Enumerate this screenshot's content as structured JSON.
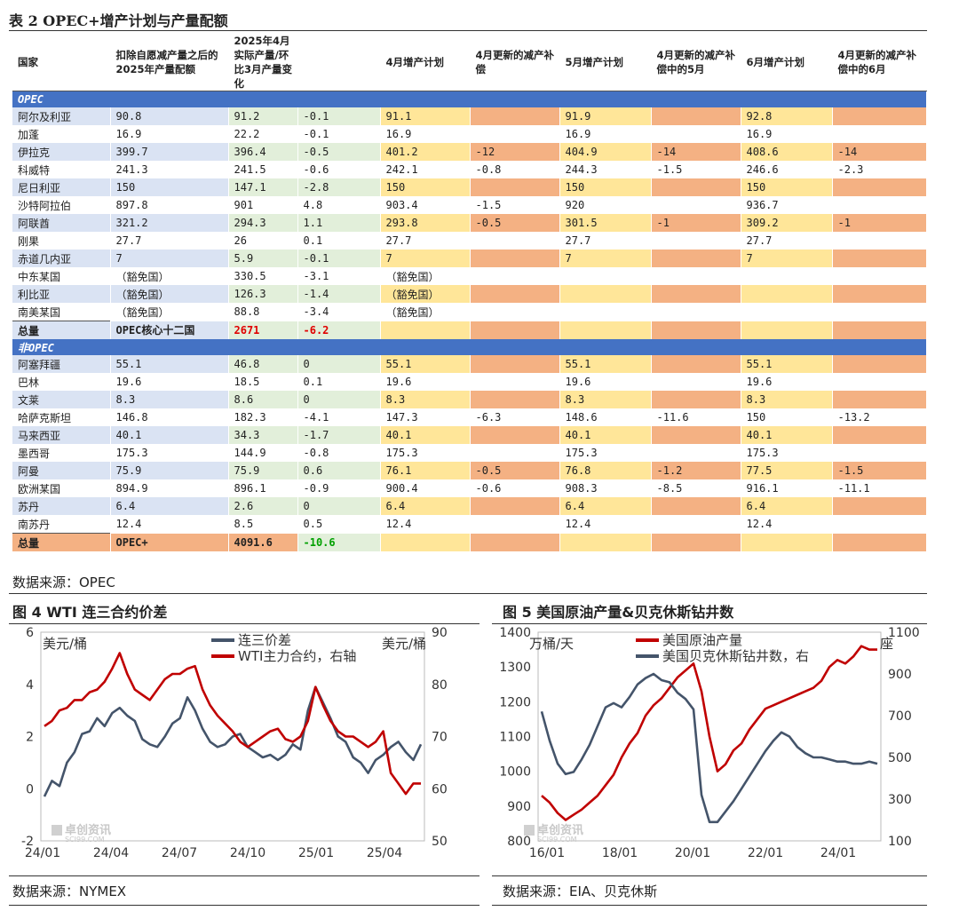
{
  "table": {
    "title": "表 2 OPEC+增产计划与产量配额",
    "headers": [
      "国家",
      "扣除自愿减产量之后的2025年产量配额",
      "2025年4月实际产量/环比3月产量变化",
      "",
      "4月增产计划",
      "4月更新的减产补偿",
      "5月增产计划",
      "4月更新的减产补偿中的5月",
      "6月增产计划",
      "4月更新的减产补偿中的6月"
    ],
    "sections": [
      {
        "label": "OPEC",
        "rows": [
          [
            "阿尔及利亚",
            "90.8",
            "91.2",
            "-0.1",
            "91.1",
            "",
            "91.9",
            "",
            "92.8",
            ""
          ],
          [
            "加蓬",
            "16.9",
            "22.2",
            "-0.1",
            "16.9",
            "",
            "16.9",
            "",
            "16.9",
            ""
          ],
          [
            "伊拉克",
            "399.7",
            "396.4",
            "-0.5",
            "401.2",
            "-12",
            "404.9",
            "-14",
            "408.6",
            "-14"
          ],
          [
            "科威特",
            "241.3",
            "241.5",
            "-0.6",
            "242.1",
            "-0.8",
            "244.3",
            "-1.5",
            "246.6",
            "-2.3"
          ],
          [
            "尼日利亚",
            "150",
            "147.1",
            "-2.8",
            "150",
            "",
            "150",
            "",
            "150",
            ""
          ],
          [
            "沙特阿拉伯",
            "897.8",
            "901",
            "4.8",
            "903.4",
            "-1.5",
            "920",
            "",
            "936.7",
            ""
          ],
          [
            "阿联酋",
            "321.2",
            "294.3",
            "1.1",
            "293.8",
            "-0.5",
            "301.5",
            "-1",
            "309.2",
            "-1"
          ],
          [
            "刚果",
            "27.7",
            "26",
            "0.1",
            "27.7",
            "",
            "27.7",
            "",
            "27.7",
            ""
          ],
          [
            "赤道几内亚",
            "7",
            "5.9",
            "-0.1",
            "7",
            "",
            "7",
            "",
            "7",
            ""
          ],
          [
            "中东某国",
            "（豁免国）",
            "330.5",
            "-3.1",
            "（豁免国）",
            "",
            "",
            "",
            "",
            ""
          ],
          [
            "利比亚",
            "（豁免国）",
            "126.3",
            "-1.4",
            "（豁免国）",
            "",
            "",
            "",
            "",
            ""
          ],
          [
            "南美某国",
            "（豁免国）",
            "88.8",
            "-3.4",
            "（豁免国）",
            "",
            "",
            "",
            "",
            ""
          ]
        ],
        "total": [
          "总量",
          "OPEC核心十二国",
          "2671",
          "-6.2",
          "",
          "",
          "",
          "",
          "",
          ""
        ]
      },
      {
        "label": "非OPEC",
        "rows": [
          [
            "阿塞拜疆",
            "55.1",
            "46.8",
            "0",
            "55.1",
            "",
            "55.1",
            "",
            "55.1",
            ""
          ],
          [
            "巴林",
            "19.6",
            "18.5",
            "0.1",
            "19.6",
            "",
            "19.6",
            "",
            "19.6",
            ""
          ],
          [
            "文莱",
            "8.3",
            "8.6",
            "0",
            "8.3",
            "",
            "8.3",
            "",
            "8.3",
            ""
          ],
          [
            "哈萨克斯坦",
            "146.8",
            "182.3",
            "-4.1",
            "147.3",
            "-6.3",
            "148.6",
            "-11.6",
            "150",
            "-13.2"
          ],
          [
            "马来西亚",
            "40.1",
            "34.3",
            "-1.7",
            "40.1",
            "",
            "40.1",
            "",
            "40.1",
            ""
          ],
          [
            "墨西哥",
            "175.3",
            "144.9",
            "-0.8",
            "175.3",
            "",
            "175.3",
            "",
            "175.3",
            ""
          ],
          [
            "阿曼",
            "75.9",
            "75.9",
            "0.6",
            "76.1",
            "-0.5",
            "76.8",
            "-1.2",
            "77.5",
            "-1.5"
          ],
          [
            "欧洲某国",
            "894.9",
            "896.1",
            "-0.9",
            "900.4",
            "-0.6",
            "908.3",
            "-8.5",
            "916.1",
            "-11.1"
          ],
          [
            "苏丹",
            "6.4",
            "2.6",
            "0",
            "6.4",
            "",
            "6.4",
            "",
            "6.4",
            ""
          ],
          [
            "南苏丹",
            "12.4",
            "8.5",
            "0.5",
            "12.4",
            "",
            "12.4",
            "",
            "12.4",
            ""
          ]
        ],
        "total": [
          "总量",
          "OPEC+",
          "4091.6",
          "-10.6",
          "",
          "",
          "",
          "",
          "",
          ""
        ]
      }
    ],
    "source": "数据来源：OPEC",
    "colors": {
      "section": "#4472c4",
      "light_blue": "#dae3f3",
      "light_green": "#e2efda",
      "yellow": "#ffe699",
      "orange": "#f4b183",
      "red_text": "#e00000",
      "green_text": "#00a000"
    }
  },
  "chart4": {
    "title": "图 4 WTI 连三合约价差",
    "source": "数据来源：NYMEX",
    "watermark": "卓创资讯",
    "watermark_sub": "SCI99.COM",
    "chart_data": {
      "type": "line",
      "x_ticks": [
        "24/01",
        "24/04",
        "24/07",
        "24/10",
        "25/01",
        "25/04"
      ],
      "left_axis": {
        "label": "美元/桶",
        "ticks": [
          "6",
          "4",
          "2",
          "0",
          "-2"
        ],
        "range": [
          -2,
          6
        ]
      },
      "right_axis": {
        "label": "美元/桶",
        "ticks": [
          "90",
          "80",
          "70",
          "60",
          "50"
        ],
        "range": [
          50,
          90
        ]
      },
      "series": [
        {
          "name": "连三价差",
          "axis": "left",
          "color": "#44546a",
          "values": [
            -0.3,
            0.3,
            0.1,
            1.0,
            1.4,
            2.1,
            2.2,
            2.7,
            2.4,
            2.9,
            3.1,
            2.8,
            2.6,
            1.9,
            1.7,
            1.6,
            2.0,
            2.5,
            2.7,
            3.5,
            3.0,
            2.3,
            1.8,
            1.6,
            1.7,
            2.0,
            2.1,
            1.6,
            1.4,
            1.2,
            1.3,
            1.1,
            1.3,
            1.7,
            1.5,
            3.0,
            3.9,
            3.3,
            2.7,
            2.0,
            1.8,
            1.2,
            1.0,
            0.6,
            1.1,
            1.3,
            1.6,
            1.8,
            1.4,
            1.1,
            1.7
          ]
        },
        {
          "name": "WTI主力合约，右轴",
          "axis": "right",
          "color": "#c00000",
          "values": [
            72,
            73,
            75,
            75.5,
            77,
            77,
            78.5,
            79,
            80.5,
            83,
            86,
            82,
            79,
            78,
            77,
            79,
            81,
            82,
            82,
            83,
            83.5,
            79,
            76,
            74,
            72.5,
            71,
            69,
            68,
            69,
            70,
            71,
            71.5,
            69.5,
            69,
            70,
            73,
            79.5,
            76,
            73,
            71,
            70,
            70,
            69,
            68,
            69,
            71,
            63,
            61,
            59,
            61,
            61
          ]
        }
      ]
    }
  },
  "chart5": {
    "title": "图 5 美国原油产量&贝克休斯钻井数",
    "source": "数据来源：EIA、贝克休斯",
    "watermark": "卓创资讯",
    "watermark_sub": "SCI99.COM",
    "chart_data": {
      "type": "line",
      "x_ticks": [
        "16/01",
        "18/01",
        "20/01",
        "22/01",
        "24/01"
      ],
      "left_axis": {
        "label": "万桶/天",
        "ticks": [
          "1400",
          "1300",
          "1200",
          "1100",
          "1000",
          "900",
          "800"
        ],
        "range": [
          800,
          1400
        ]
      },
      "right_axis": {
        "label": "座",
        "ticks": [
          "1100",
          "900",
          "700",
          "500",
          "300",
          "100"
        ],
        "range": [
          100,
          1100
        ]
      },
      "series": [
        {
          "name": "美国原油产量",
          "axis": "left",
          "color": "#c00000",
          "values": [
            930,
            910,
            880,
            860,
            875,
            890,
            910,
            930,
            960,
            990,
            1040,
            1080,
            1110,
            1160,
            1190,
            1210,
            1240,
            1270,
            1290,
            1310,
            1230,
            1100,
            1000,
            1020,
            1060,
            1080,
            1120,
            1150,
            1180,
            1190,
            1200,
            1210,
            1220,
            1230,
            1240,
            1260,
            1300,
            1320,
            1310,
            1330,
            1360,
            1350,
            1350
          ]
        },
        {
          "name": "美国贝克休斯钻井数，右",
          "axis": "right",
          "color": "#44546a",
          "values": [
            720,
            580,
            470,
            420,
            430,
            490,
            560,
            650,
            740,
            760,
            740,
            790,
            850,
            880,
            900,
            870,
            860,
            810,
            780,
            730,
            320,
            190,
            190,
            240,
            290,
            350,
            410,
            470,
            530,
            580,
            620,
            600,
            550,
            520,
            500,
            500,
            490,
            480,
            480,
            470,
            470,
            480,
            470
          ]
        }
      ]
    }
  }
}
